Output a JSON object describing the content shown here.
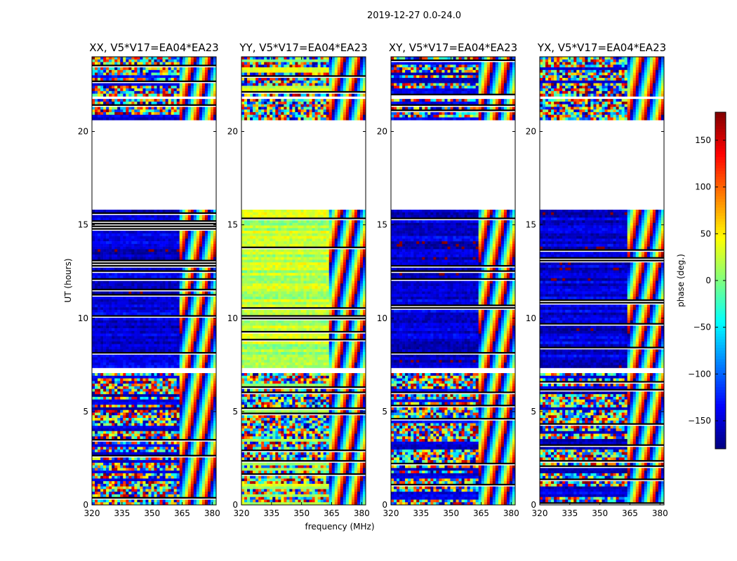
{
  "figure_title": "2019-12-27 0.0-24.0",
  "chart_data": {
    "type": "heatmap",
    "title": "2019-12-27 0.0-24.0",
    "xlabel": "frequency (MHz)",
    "ylabel": "UT (hours)",
    "xlim": [
      320,
      382
    ],
    "ylim": [
      0,
      24
    ],
    "xticks": [
      320,
      335,
      350,
      365,
      380
    ],
    "yticks": [
      0,
      5,
      10,
      15,
      20
    ],
    "gaps_hours": [
      [
        15.8,
        20.6
      ],
      [
        21.7,
        21.9
      ],
      [
        7.0,
        7.4
      ]
    ],
    "channel_break_mhz": 364,
    "colorbar": {
      "label": "phase (deg.)",
      "range": [
        -180,
        180
      ],
      "ticks": [
        150,
        100,
        50,
        0,
        -50,
        -100,
        -150
      ],
      "tick_labels": [
        "150",
        "100",
        "50",
        "0",
        "−50",
        "−100",
        "−150"
      ],
      "colormap": "jet"
    },
    "panels": [
      {
        "title": "XX, V5*V17=EA04*EA23",
        "pol": "XX",
        "bulk_phase_deg": -150
      },
      {
        "title": "YY, V5*V17=EA04*EA23",
        "pol": "YY",
        "bulk_phase_deg": 20
      },
      {
        "title": "XY, V5*V17=EA04*EA23",
        "pol": "XY",
        "bulk_phase_deg": -150
      },
      {
        "title": "YX, V5*V17=EA04*EA23",
        "pol": "YX",
        "bulk_phase_deg": -150
      }
    ]
  }
}
